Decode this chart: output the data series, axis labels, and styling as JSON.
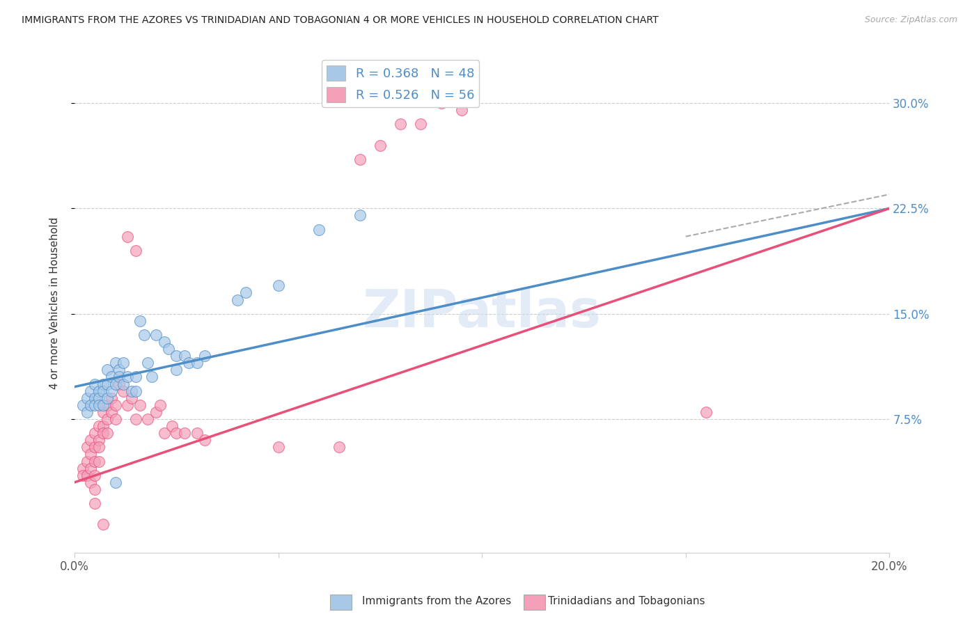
{
  "title": "IMMIGRANTS FROM THE AZORES VS TRINIDADIAN AND TOBAGONIAN 4 OR MORE VEHICLES IN HOUSEHOLD CORRELATION CHART",
  "source": "Source: ZipAtlas.com",
  "ylabel": "4 or more Vehicles in Household",
  "yticks": [
    "7.5%",
    "15.0%",
    "22.5%",
    "30.0%"
  ],
  "ytick_vals": [
    0.075,
    0.15,
    0.225,
    0.3
  ],
  "xlim": [
    0.0,
    0.2
  ],
  "ylim": [
    -0.02,
    0.335
  ],
  "blue_color": "#a8c8e8",
  "pink_color": "#f4a0b8",
  "blue_line_color": "#4d8ec9",
  "pink_line_color": "#e8507a",
  "r_blue": 0.368,
  "n_blue": 48,
  "r_pink": 0.526,
  "n_pink": 56,
  "legend_label_blue": "Immigrants from the Azores",
  "legend_label_pink": "Trinidadians and Tobagonians",
  "watermark": "ZIPatlas",
  "blue_scatter": [
    [
      0.002,
      0.085
    ],
    [
      0.003,
      0.09
    ],
    [
      0.003,
      0.08
    ],
    [
      0.004,
      0.095
    ],
    [
      0.004,
      0.085
    ],
    [
      0.005,
      0.1
    ],
    [
      0.005,
      0.09
    ],
    [
      0.005,
      0.085
    ],
    [
      0.006,
      0.095
    ],
    [
      0.006,
      0.09
    ],
    [
      0.006,
      0.085
    ],
    [
      0.007,
      0.1
    ],
    [
      0.007,
      0.095
    ],
    [
      0.007,
      0.085
    ],
    [
      0.008,
      0.11
    ],
    [
      0.008,
      0.1
    ],
    [
      0.008,
      0.09
    ],
    [
      0.009,
      0.105
    ],
    [
      0.009,
      0.095
    ],
    [
      0.01,
      0.1
    ],
    [
      0.01,
      0.115
    ],
    [
      0.011,
      0.11
    ],
    [
      0.011,
      0.105
    ],
    [
      0.012,
      0.1
    ],
    [
      0.012,
      0.115
    ],
    [
      0.013,
      0.105
    ],
    [
      0.014,
      0.095
    ],
    [
      0.015,
      0.105
    ],
    [
      0.015,
      0.095
    ],
    [
      0.016,
      0.145
    ],
    [
      0.017,
      0.135
    ],
    [
      0.018,
      0.115
    ],
    [
      0.019,
      0.105
    ],
    [
      0.02,
      0.135
    ],
    [
      0.022,
      0.13
    ],
    [
      0.023,
      0.125
    ],
    [
      0.025,
      0.12
    ],
    [
      0.025,
      0.11
    ],
    [
      0.027,
      0.12
    ],
    [
      0.028,
      0.115
    ],
    [
      0.03,
      0.115
    ],
    [
      0.032,
      0.12
    ],
    [
      0.04,
      0.16
    ],
    [
      0.042,
      0.165
    ],
    [
      0.05,
      0.17
    ],
    [
      0.06,
      0.21
    ],
    [
      0.07,
      0.22
    ],
    [
      0.01,
      0.03
    ]
  ],
  "pink_scatter": [
    [
      0.002,
      0.04
    ],
    [
      0.002,
      0.035
    ],
    [
      0.003,
      0.055
    ],
    [
      0.003,
      0.045
    ],
    [
      0.003,
      0.035
    ],
    [
      0.004,
      0.06
    ],
    [
      0.004,
      0.05
    ],
    [
      0.004,
      0.04
    ],
    [
      0.004,
      0.03
    ],
    [
      0.005,
      0.065
    ],
    [
      0.005,
      0.055
    ],
    [
      0.005,
      0.045
    ],
    [
      0.005,
      0.035
    ],
    [
      0.005,
      0.025
    ],
    [
      0.005,
      0.015
    ],
    [
      0.006,
      0.07
    ],
    [
      0.006,
      0.06
    ],
    [
      0.006,
      0.055
    ],
    [
      0.006,
      0.045
    ],
    [
      0.007,
      0.08
    ],
    [
      0.007,
      0.07
    ],
    [
      0.007,
      0.065
    ],
    [
      0.008,
      0.085
    ],
    [
      0.008,
      0.075
    ],
    [
      0.008,
      0.065
    ],
    [
      0.009,
      0.09
    ],
    [
      0.009,
      0.08
    ],
    [
      0.01,
      0.085
    ],
    [
      0.01,
      0.075
    ],
    [
      0.011,
      0.1
    ],
    [
      0.012,
      0.095
    ],
    [
      0.013,
      0.085
    ],
    [
      0.014,
      0.09
    ],
    [
      0.015,
      0.075
    ],
    [
      0.016,
      0.085
    ],
    [
      0.018,
      0.075
    ],
    [
      0.02,
      0.08
    ],
    [
      0.021,
      0.085
    ],
    [
      0.022,
      0.065
    ],
    [
      0.024,
      0.07
    ],
    [
      0.025,
      0.065
    ],
    [
      0.027,
      0.065
    ],
    [
      0.03,
      0.065
    ],
    [
      0.032,
      0.06
    ],
    [
      0.05,
      0.055
    ],
    [
      0.065,
      0.055
    ],
    [
      0.07,
      0.26
    ],
    [
      0.075,
      0.27
    ],
    [
      0.08,
      0.285
    ],
    [
      0.085,
      0.285
    ],
    [
      0.09,
      0.3
    ],
    [
      0.095,
      0.295
    ],
    [
      0.013,
      0.205
    ],
    [
      0.015,
      0.195
    ],
    [
      0.155,
      0.08
    ],
    [
      0.007,
      0.0
    ]
  ],
  "blue_line": {
    "x0": 0.0,
    "y0": 0.098,
    "x1": 0.2,
    "y1": 0.225
  },
  "pink_line": {
    "x0": 0.0,
    "y0": 0.03,
    "x1": 0.2,
    "y1": 0.225
  }
}
